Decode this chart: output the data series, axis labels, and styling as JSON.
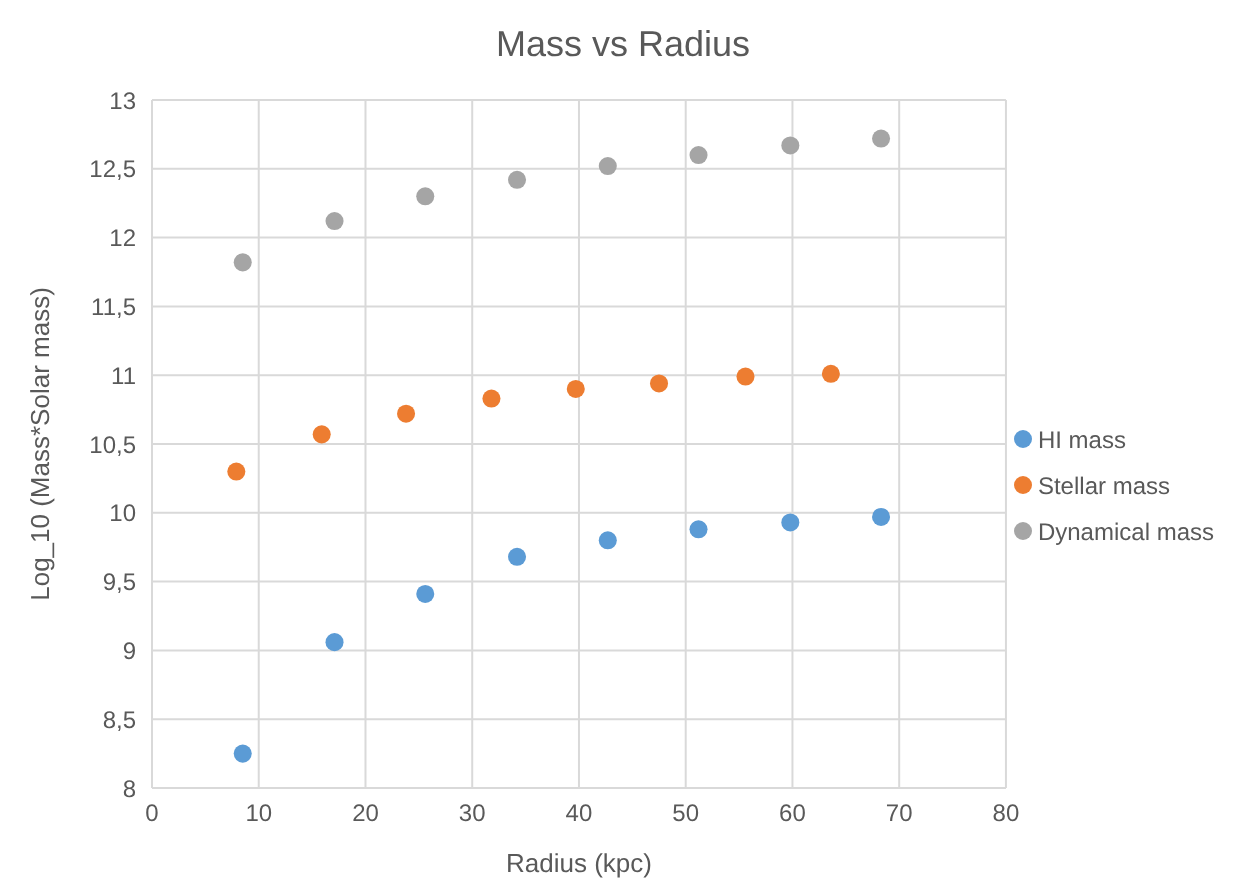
{
  "chart_data": {
    "type": "scatter",
    "title": "Mass vs Radius",
    "xlabel": "Radius (kpc)",
    "ylabel": "Log_10 (Mass*Solar mass)",
    "xlim": [
      0,
      80
    ],
    "xticks": [
      0,
      10,
      20,
      30,
      40,
      50,
      60,
      70,
      80
    ],
    "ylim": [
      8,
      13
    ],
    "yticks": [
      {
        "value": 8,
        "label": "8"
      },
      {
        "value": 8.5,
        "label": "8,5"
      },
      {
        "value": 9,
        "label": "9"
      },
      {
        "value": 9.5,
        "label": "9,5"
      },
      {
        "value": 10,
        "label": "10"
      },
      {
        "value": 10.5,
        "label": "10,5"
      },
      {
        "value": 11,
        "label": "11"
      },
      {
        "value": 11.5,
        "label": "11,5"
      },
      {
        "value": 12,
        "label": "12"
      },
      {
        "value": 12.5,
        "label": "12,5"
      },
      {
        "value": 13,
        "label": "13"
      }
    ],
    "grid": true,
    "legend": "right",
    "marker": "circle",
    "series": [
      {
        "name": "HI mass",
        "color": "#5b9bd5",
        "x": [
          8.5,
          17.1,
          25.6,
          34.2,
          42.7,
          51.2,
          59.8,
          68.3
        ],
        "values": [
          8.25,
          9.06,
          9.41,
          9.68,
          9.8,
          9.88,
          9.93,
          9.97
        ]
      },
      {
        "name": "Stellar mass",
        "color": "#ed7d31",
        "x": [
          7.9,
          15.9,
          23.8,
          31.8,
          39.7,
          47.5,
          55.6,
          63.6
        ],
        "values": [
          10.3,
          10.57,
          10.72,
          10.83,
          10.9,
          10.94,
          10.99,
          11.01
        ]
      },
      {
        "name": "Dynamical mass",
        "color": "#a5a5a5",
        "x": [
          8.5,
          17.1,
          25.6,
          34.2,
          42.7,
          51.2,
          59.8,
          68.3
        ],
        "values": [
          11.82,
          12.12,
          12.3,
          12.42,
          12.52,
          12.6,
          12.67,
          12.72
        ]
      }
    ]
  }
}
